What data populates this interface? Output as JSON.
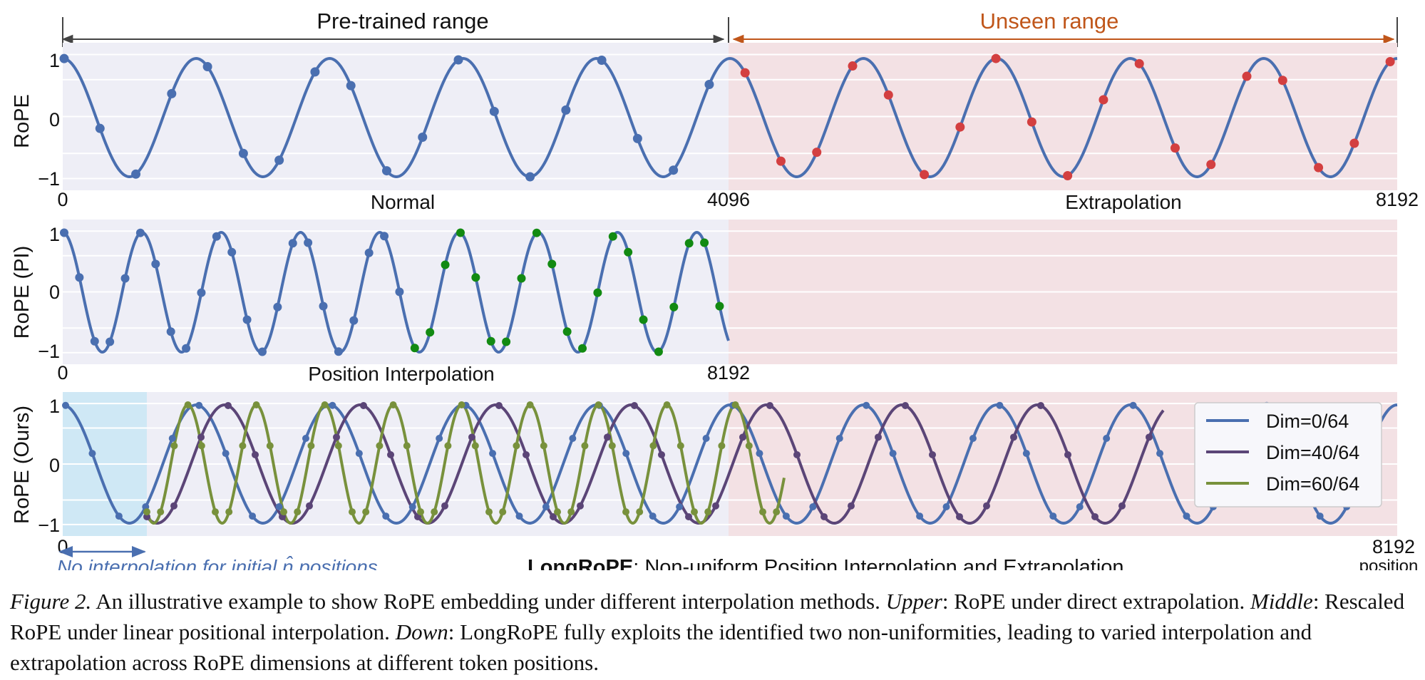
{
  "header": {
    "pretrained_label": "Pre-trained range",
    "unseen_label": "Unseen range"
  },
  "colors": {
    "curve_dim0": "#4a6fb0",
    "curve_dim40": "#5b4577",
    "curve_dim60": "#78913c",
    "marker_red": "#d33f40",
    "marker_green": "#128a12",
    "bg_normal": "#eeeef6",
    "bg_unseen": "#f3e1e4",
    "bg_initial": "#cfe8f5",
    "pretrained_arrow": "#444444",
    "unseen_arrow": "#c0561a",
    "note_text": "#4a6fb0"
  },
  "chart_data": [
    {
      "type": "line",
      "ylabel": "RoPE",
      "xticks": [
        "0",
        "4096",
        "8192"
      ],
      "yticks": [
        "1",
        "0",
        "−1"
      ],
      "ylim": [
        -1,
        1
      ],
      "xlim": [
        0,
        8192
      ],
      "regions": {
        "normal": "Normal",
        "unseen": "Extrapolation"
      },
      "series": [
        {
          "frequency_periods_in_range": 10,
          "marker_step_tokens": 200,
          "markers_in_pretrained": "blue",
          "markers_in_unseen": "red"
        }
      ]
    },
    {
      "type": "line",
      "ylabel": "RoPE (PI)",
      "xticks": [
        "0",
        "8192"
      ],
      "yticks": [
        "1",
        "0",
        "−1"
      ],
      "ylim": [
        -1,
        1
      ],
      "xlim": [
        0,
        8192
      ],
      "regions": {
        "normal": "Position Interpolation"
      },
      "series": [
        {
          "frequency_periods_in_range": 10,
          "marker_step_tokens": 200,
          "markers_first_half": "blue",
          "markers_second_half": "green"
        }
      ]
    },
    {
      "type": "line",
      "ylabel": "RoPE (Ours)",
      "xticks": [
        "0",
        "8192"
      ],
      "yticks": [
        "1",
        "0",
        "−1"
      ],
      "ylim": [
        -1,
        1
      ],
      "xlim": [
        0,
        8192
      ],
      "x_axis_title": "position",
      "title_bold": "LongRoPE",
      "title_rest": ": Non-uniform Position Interpolation and Extrapolation",
      "initial_note": "No interpolation for initial n̂ positions",
      "legend_position": "upper-right",
      "series": [
        {
          "name": "Dim=0/64",
          "periods_in_range": 10,
          "x_end": 8192
        },
        {
          "name": "Dim=40/64",
          "periods_in_range": 16,
          "x_start": 500,
          "x_end": 6600
        },
        {
          "name": "Dim=60/64",
          "periods_in_range": 24,
          "x_start": 500,
          "x_end": 4250
        }
      ]
    }
  ],
  "caption": {
    "figure_label": "Figure 2.",
    "intro": " An illustrative example to show RoPE embedding under different interpolation methods. ",
    "upper_label": "Upper",
    "upper_text": ": RoPE under direct extrapolation. ",
    "middle_label": "Middle",
    "middle_text": ": Rescaled RoPE under linear positional interpolation. ",
    "down_label": "Down",
    "down_text": ": LongRoPE fully exploits the identified two non-uniformities, leading to varied interpolation and extrapolation across RoPE dimensions at different token positions."
  }
}
